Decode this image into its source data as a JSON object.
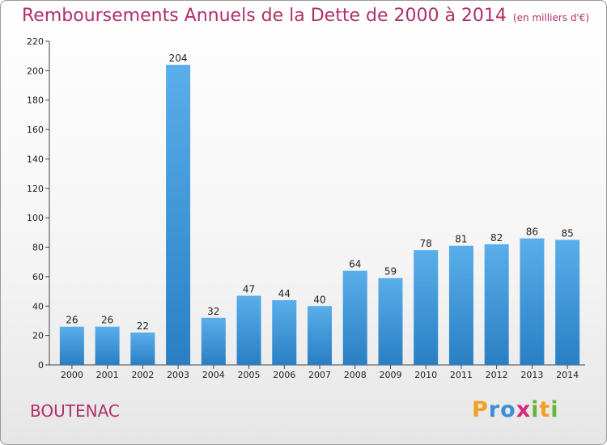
{
  "chart_data": {
    "type": "bar",
    "title": "Remboursements Annuels de la Dette de 2000 à 2014",
    "subtitle": "(en milliers d'€)",
    "categories": [
      "2000",
      "2001",
      "2002",
      "2003",
      "2004",
      "2005",
      "2006",
      "2007",
      "2008",
      "2009",
      "2010",
      "2011",
      "2012",
      "2013",
      "2014"
    ],
    "values": [
      26,
      26,
      22,
      204,
      32,
      47,
      44,
      40,
      64,
      59,
      78,
      81,
      82,
      86,
      85
    ],
    "ylim": [
      0,
      220
    ],
    "yticks": [
      0,
      20,
      40,
      60,
      80,
      100,
      120,
      140,
      160,
      180,
      200,
      220
    ],
    "grid": false,
    "colors": {
      "bar_top": "#5aaeea",
      "bar_bottom": "#2a7fc4"
    }
  },
  "commune": "BOUTENAC",
  "logo": {
    "text": "Proxiti",
    "letters": [
      {
        "ch": "P",
        "color": "#f0a020"
      },
      {
        "ch": "r",
        "color": "#3c8ed6"
      },
      {
        "ch": "o",
        "color": "#3c8ed6"
      },
      {
        "ch": "x",
        "color": "#d62b7a"
      },
      {
        "ch": "i",
        "color": "#6ab43c"
      },
      {
        "ch": "t",
        "color": "#f0a020"
      },
      {
        "ch": "i",
        "color": "#6ab43c"
      }
    ]
  }
}
